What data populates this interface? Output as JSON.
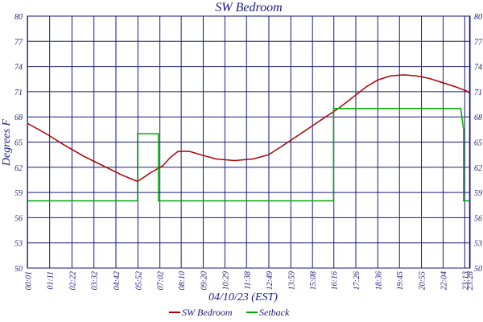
{
  "chart_data": {
    "type": "line",
    "title": "SW Bedroom",
    "xlabel": "04/10/23 (EST)",
    "ylabel": "Degrees F",
    "ylim": [
      50,
      80
    ],
    "ytick_labels": [
      "50",
      "53",
      "56",
      "59",
      "62",
      "65",
      "68",
      "71",
      "74",
      "77",
      "80"
    ],
    "x_tick_labels": [
      "00:01",
      "01:11",
      "02:22",
      "03:32",
      "04:42",
      "05:52",
      "07:02",
      "08:10",
      "09:20",
      "10:29",
      "11:38",
      "12:49",
      "13:59",
      "15:08",
      "16:16",
      "17:26",
      "18:36",
      "19:45",
      "20:55",
      "22:04",
      "23:13",
      "23:28"
    ],
    "grid": true,
    "legend_position": "bottom",
    "series": [
      {
        "name": "SW Bedroom",
        "color": "#aa0000",
        "points": [
          [
            0.02,
            67.2
          ],
          [
            1.0,
            66.0
          ],
          [
            2.0,
            64.6
          ],
          [
            3.0,
            63.3
          ],
          [
            4.0,
            62.2
          ],
          [
            5.0,
            61.1
          ],
          [
            5.85,
            60.3
          ],
          [
            6.5,
            61.3
          ],
          [
            7.2,
            62.2
          ],
          [
            7.6,
            63.2
          ],
          [
            8.0,
            63.9
          ],
          [
            8.6,
            63.9
          ],
          [
            9.2,
            63.5
          ],
          [
            10.0,
            63.0
          ],
          [
            11.0,
            62.8
          ],
          [
            12.0,
            63.0
          ],
          [
            12.8,
            63.5
          ],
          [
            13.5,
            64.5
          ],
          [
            14.5,
            66.0
          ],
          [
            15.5,
            67.5
          ],
          [
            16.5,
            69.0
          ],
          [
            17.2,
            70.2
          ],
          [
            18.0,
            71.6
          ],
          [
            18.6,
            72.4
          ],
          [
            19.3,
            72.9
          ],
          [
            20.0,
            73.0
          ],
          [
            20.6,
            72.9
          ],
          [
            21.3,
            72.6
          ],
          [
            22.0,
            72.1
          ],
          [
            22.7,
            71.6
          ],
          [
            23.3,
            71.1
          ],
          [
            23.5,
            70.8
          ]
        ]
      },
      {
        "name": "Setback",
        "color": "#00aa00",
        "points": [
          [
            0.02,
            58.0
          ],
          [
            5.85,
            58.0
          ],
          [
            5.85,
            66.0
          ],
          [
            6.95,
            66.0
          ],
          [
            6.95,
            58.0
          ],
          [
            16.25,
            58.0
          ],
          [
            16.25,
            69.0
          ],
          [
            23.0,
            69.0
          ],
          [
            23.15,
            66.5
          ],
          [
            23.15,
            58.0
          ],
          [
            23.5,
            58.0
          ]
        ]
      }
    ]
  }
}
